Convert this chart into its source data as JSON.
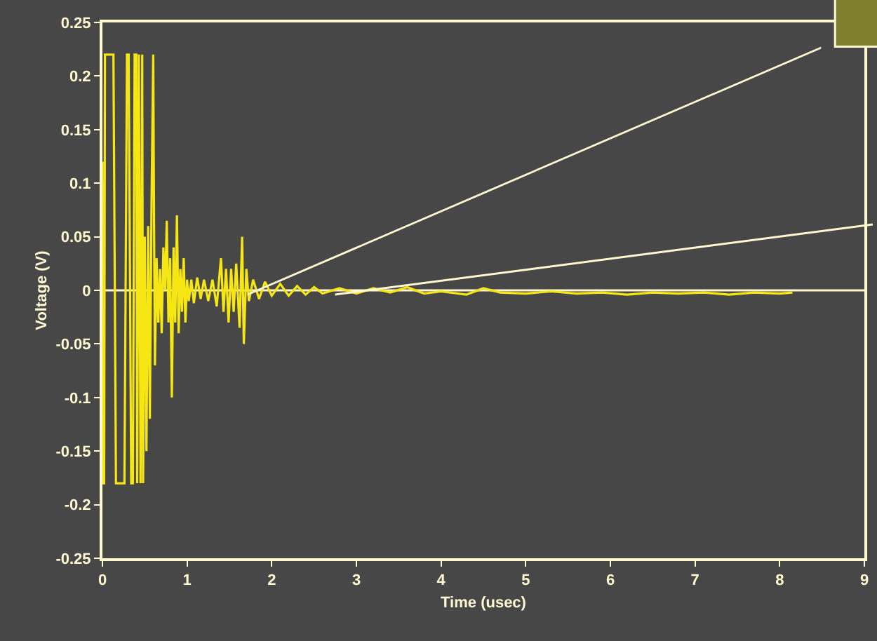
{
  "chart_data": {
    "type": "line",
    "xlabel": "Time (usec)",
    "ylabel": "Voltage (V)",
    "xlim": [
      0,
      9
    ],
    "xticks": [
      0,
      1,
      2,
      3,
      4,
      5,
      6,
      7,
      8,
      9
    ],
    "ylim": [
      -0.25,
      0.25
    ],
    "yticks": [
      {
        "value": -0.25,
        "label": "-0.25"
      },
      {
        "value": -0.2,
        "label": "-0.2"
      },
      {
        "value": -0.15,
        "label": "-0.15"
      },
      {
        "value": -0.1,
        "label": "-0.1"
      },
      {
        "value": -0.05,
        "label": "-0.05"
      },
      {
        "value": 0,
        "label": "0"
      },
      {
        "value": 0.05,
        "label": "0.05"
      },
      {
        "value": 0.1,
        "label": "0.1"
      },
      {
        "value": 0.15,
        "label": "0.15"
      },
      {
        "value": 0.2,
        "label": "0.2"
      },
      {
        "value": 0.25,
        "label": "0.25"
      }
    ],
    "grid": false,
    "legend": false,
    "marker": "none",
    "line_style": "solid",
    "ref_lines": [
      {
        "axis": "y",
        "value": 0,
        "color": "#fff8d0"
      }
    ],
    "series": [
      {
        "color": "#f5e614",
        "x": [
          0,
          0.005,
          0.02,
          0.03,
          0.13,
          0.16,
          0.26,
          0.29,
          0.31,
          0.34,
          0.36,
          0.38,
          0.4,
          0.41,
          0.43,
          0.45,
          0.47,
          0.48,
          0.5,
          0.52,
          0.54,
          0.56,
          0.58,
          0.6,
          0.61,
          0.62,
          0.64,
          0.66,
          0.68,
          0.7,
          0.72,
          0.74,
          0.76,
          0.78,
          0.8,
          0.82,
          0.84,
          0.86,
          0.88,
          0.9,
          0.92,
          0.94,
          0.96,
          0.98,
          1.0,
          1.02,
          1.05,
          1.08,
          1.12,
          1.16,
          1.2,
          1.25,
          1.3,
          1.35,
          1.4,
          1.43,
          1.46,
          1.49,
          1.52,
          1.55,
          1.58,
          1.62,
          1.65,
          1.67,
          1.7,
          1.73,
          1.78,
          1.85,
          1.92,
          2.0,
          2.1,
          2.2,
          2.3,
          2.4,
          2.5,
          2.6,
          2.8,
          3.0,
          3.2,
          3.4,
          3.6,
          3.8,
          4.0,
          4.3,
          4.5,
          4.7,
          5.0,
          5.3,
          5.6,
          5.9,
          6.2,
          6.5,
          6.8,
          7.1,
          7.4,
          7.7,
          8.0,
          8.15
        ],
        "values": [
          0.12,
          -0.18,
          -0.18,
          0.22,
          0.22,
          -0.18,
          -0.18,
          0.22,
          0.22,
          -0.18,
          -0.18,
          0.22,
          0.22,
          -0.18,
          0.22,
          -0.18,
          0.22,
          -0.18,
          0.05,
          -0.15,
          0.06,
          -0.12,
          0.08,
          0.22,
          0.06,
          -0.07,
          0.03,
          -0.03,
          0.02,
          -0.04,
          0.04,
          0.0,
          0.065,
          -0.03,
          0.03,
          -0.1,
          0.04,
          -0.03,
          0.07,
          -0.04,
          0.02,
          -0.02,
          0.03,
          -0.03,
          0.01,
          -0.01,
          0.01,
          -0.012,
          0.012,
          -0.008,
          0.01,
          -0.01,
          0.01,
          -0.015,
          0.03,
          -0.02,
          0.02,
          -0.03,
          0.02,
          -0.02,
          0.025,
          -0.035,
          0.05,
          -0.05,
          0.02,
          -0.01,
          0.01,
          -0.008,
          0.008,
          -0.005,
          0.006,
          -0.005,
          0.004,
          -0.004,
          0.003,
          -0.003,
          0.002,
          -0.003,
          0.002,
          -0.002,
          0.003,
          -0.003,
          -0.001,
          -0.004,
          0.002,
          -0.002,
          -0.003,
          -0.001,
          -0.003,
          -0.002,
          -0.004,
          -0.002,
          -0.003,
          -0.002,
          -0.004,
          -0.002,
          -0.003,
          -0.002
        ]
      }
    ]
  }
}
